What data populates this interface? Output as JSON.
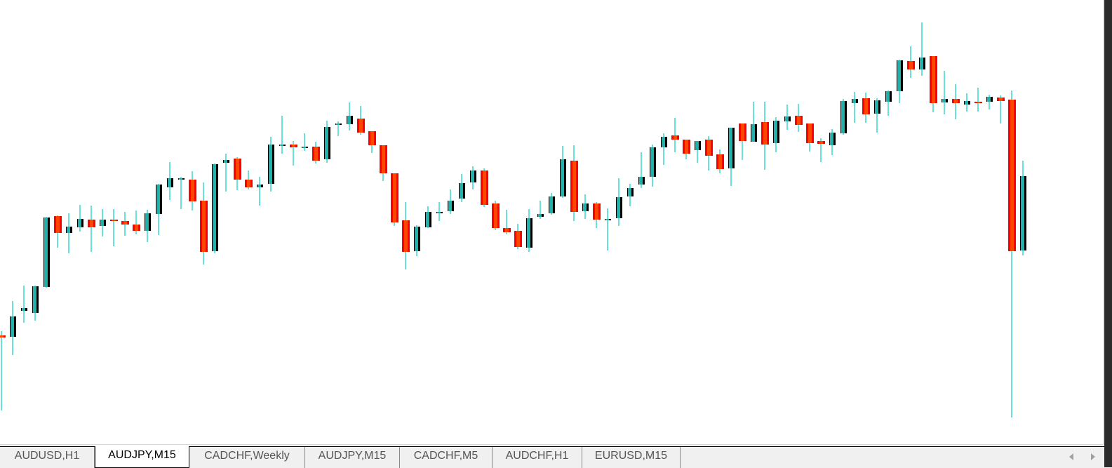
{
  "window": {
    "symbol": "AUDJPY",
    "timeframe": "M15"
  },
  "tabs": [
    {
      "label": "AUDUSD,H1",
      "active": false
    },
    {
      "label": "AUDJPY,M15",
      "active": true
    },
    {
      "label": "CADCHF,Weekly",
      "active": false
    },
    {
      "label": "AUDJPY,M15",
      "active": false
    },
    {
      "label": "CADCHF,M5",
      "active": false
    },
    {
      "label": "AUDCHF,H1",
      "active": false
    },
    {
      "label": "EURUSD,M15",
      "active": false
    }
  ],
  "icons": {
    "scroll_left": "triangle-left-icon",
    "scroll_right": "triangle-right-icon"
  },
  "colors": {
    "bull_body": "#20b2aa",
    "bull_outline": "#000000",
    "bear_body": "#ff0000",
    "bear_inner": "#ff4500",
    "wick": "#66e3da",
    "background": "#ffffff"
  },
  "chart_data": {
    "type": "candlestick",
    "title": "",
    "note": "no price axis visible; values in relative price units (higher = higher price)",
    "ylim": [
      0,
      600
    ],
    "grid": false,
    "fields": [
      "open",
      "high",
      "low",
      "close"
    ],
    "candles": [
      [
        122,
        128,
        15,
        119
      ],
      [
        120,
        171,
        94,
        149
      ],
      [
        157,
        193,
        140,
        161
      ],
      [
        154,
        193,
        143,
        192
      ],
      [
        191,
        291,
        190,
        290
      ],
      [
        292,
        293,
        247,
        268
      ],
      [
        268,
        296,
        239,
        277
      ],
      [
        276,
        308,
        270,
        288
      ],
      [
        287,
        307,
        241,
        276
      ],
      [
        278,
        302,
        263,
        287
      ],
      [
        287,
        302,
        249,
        285
      ],
      [
        285,
        298,
        264,
        280
      ],
      [
        280,
        300,
        266,
        271
      ],
      [
        271,
        301,
        255,
        296
      ],
      [
        295,
        338,
        265,
        337
      ],
      [
        333,
        369,
        315,
        346
      ],
      [
        345,
        348,
        302,
        346
      ],
      [
        344,
        356,
        300,
        313
      ],
      [
        314,
        340,
        223,
        241
      ],
      [
        242,
        367,
        239,
        366
      ],
      [
        368,
        381,
        327,
        372
      ],
      [
        374,
        376,
        329,
        344
      ],
      [
        344,
        357,
        330,
        333
      ],
      [
        333,
        348,
        307,
        337
      ],
      [
        338,
        405,
        327,
        394
      ],
      [
        393,
        435,
        381,
        394
      ],
      [
        394,
        399,
        364,
        390
      ],
      [
        389,
        410,
        385,
        391
      ],
      [
        391,
        398,
        367,
        371
      ],
      [
        373,
        428,
        368,
        419
      ],
      [
        422,
        427,
        406,
        424
      ],
      [
        423,
        454,
        414,
        435
      ],
      [
        431,
        449,
        408,
        411
      ],
      [
        413,
        413,
        382,
        393
      ],
      [
        393,
        393,
        342,
        353
      ],
      [
        353,
        353,
        278,
        283
      ],
      [
        286,
        312,
        216,
        241
      ],
      [
        242,
        279,
        235,
        277
      ],
      [
        276,
        306,
        275,
        298
      ],
      [
        297,
        312,
        285,
        298
      ],
      [
        299,
        330,
        295,
        314
      ],
      [
        317,
        352,
        312,
        339
      ],
      [
        340,
        363,
        330,
        357
      ],
      [
        357,
        360,
        305,
        308
      ],
      [
        310,
        314,
        272,
        275
      ],
      [
        275,
        301,
        266,
        269
      ],
      [
        271,
        281,
        245,
        248
      ],
      [
        247,
        302,
        241,
        289
      ],
      [
        291,
        314,
        288,
        295
      ],
      [
        296,
        325,
        294,
        320
      ],
      [
        320,
        392,
        318,
        373
      ],
      [
        371,
        393,
        285,
        298
      ],
      [
        299,
        323,
        288,
        310
      ],
      [
        310,
        312,
        275,
        287
      ],
      [
        287,
        303,
        243,
        288
      ],
      [
        289,
        346,
        278,
        319
      ],
      [
        320,
        338,
        306,
        332
      ],
      [
        337,
        383,
        332,
        348
      ],
      [
        348,
        394,
        334,
        390
      ],
      [
        390,
        410,
        365,
        405
      ],
      [
        407,
        432,
        383,
        401
      ],
      [
        401,
        401,
        373,
        381
      ],
      [
        386,
        399,
        368,
        399
      ],
      [
        401,
        406,
        357,
        378
      ],
      [
        380,
        387,
        353,
        359
      ],
      [
        360,
        418,
        335,
        418
      ],
      [
        424,
        424,
        372,
        399
      ],
      [
        398,
        455,
        398,
        423
      ],
      [
        426,
        455,
        358,
        394
      ],
      [
        396,
        433,
        383,
        428
      ],
      [
        427,
        451,
        415,
        434
      ],
      [
        435,
        452,
        412,
        422
      ],
      [
        424,
        424,
        384,
        396
      ],
      [
        399,
        403,
        369,
        395
      ],
      [
        393,
        416,
        379,
        411
      ],
      [
        410,
        459,
        408,
        456
      ],
      [
        453,
        469,
        425,
        459
      ],
      [
        460,
        468,
        425,
        437
      ],
      [
        438,
        460,
        411,
        457
      ],
      [
        455,
        471,
        435,
        470
      ],
      [
        470,
        515,
        453,
        514
      ],
      [
        513,
        534,
        489,
        501
      ],
      [
        501,
        568,
        492,
        518
      ],
      [
        520,
        520,
        440,
        453
      ],
      [
        454,
        499,
        437,
        459
      ],
      [
        459,
        480,
        430,
        453
      ],
      [
        451,
        467,
        441,
        456
      ],
      [
        455,
        475,
        441,
        453
      ],
      [
        455,
        465,
        444,
        462
      ],
      [
        461,
        464,
        424,
        456
      ],
      [
        458,
        471,
        5,
        242
      ],
      [
        243,
        371,
        236,
        349
      ]
    ]
  }
}
